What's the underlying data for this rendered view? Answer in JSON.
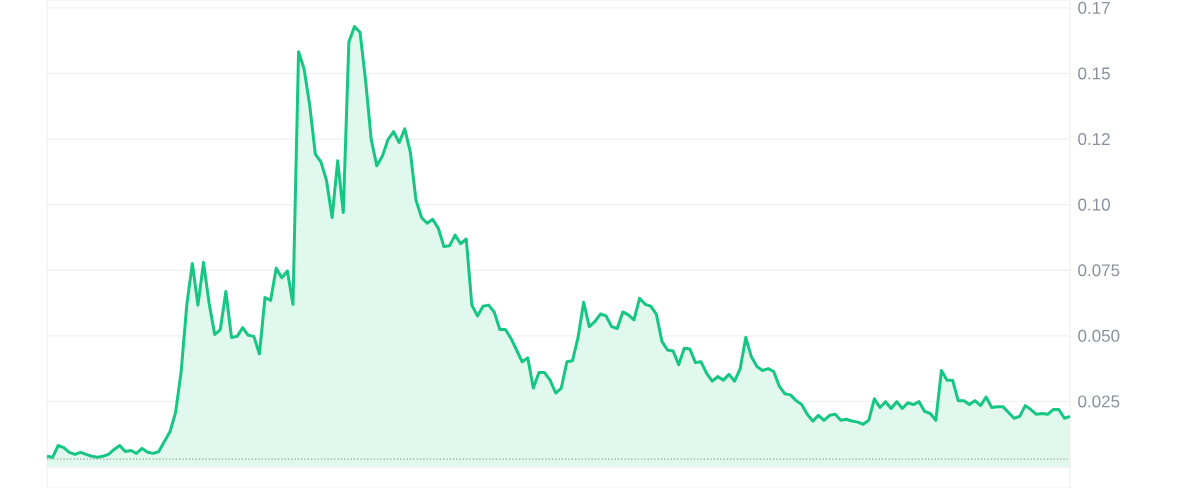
{
  "chart_data": {
    "type": "area",
    "categories": [
      null,
      null,
      null,
      null,
      null,
      null,
      null,
      null,
      null,
      null,
      null,
      null,
      null,
      null,
      null,
      null,
      null,
      null,
      null,
      null,
      null,
      null,
      null,
      null,
      null,
      null,
      null,
      null,
      null,
      null,
      null,
      null,
      null,
      null,
      null,
      null,
      null,
      null,
      null,
      null,
      null,
      null,
      null,
      null,
      null,
      null,
      null,
      null,
      null,
      null,
      null,
      null,
      null,
      null,
      null,
      null,
      null,
      null,
      null,
      null,
      null,
      null,
      null,
      null,
      null,
      null,
      null,
      null,
      null,
      null,
      null,
      null,
      null,
      null,
      null,
      null,
      null,
      null,
      null,
      null,
      null,
      null,
      null,
      null,
      null,
      null,
      null,
      null,
      null,
      null,
      null,
      null,
      null,
      null,
      null,
      null,
      null,
      null,
      null,
      null,
      null,
      null,
      null,
      null,
      null,
      null,
      null,
      null,
      null,
      null,
      null,
      null,
      null,
      null,
      null,
      null,
      null,
      null,
      null,
      null,
      null,
      null,
      null,
      null,
      null,
      null,
      null,
      null,
      null,
      null,
      null,
      null,
      null,
      null,
      null,
      null,
      null,
      null,
      null,
      null,
      null,
      null,
      null,
      null,
      null,
      null,
      null,
      null,
      null,
      null,
      null,
      null,
      null,
      null,
      null,
      null,
      null,
      null,
      null,
      null,
      null,
      null,
      null,
      null,
      null,
      null,
      null,
      null,
      null,
      null,
      null,
      null,
      null,
      null,
      null,
      null,
      null,
      null,
      null,
      null,
      null,
      null,
      null,
      null
    ],
    "series": [
      {
        "color": "#16c784",
        "values": [
          0.0041,
          0.0037,
          0.0082,
          0.0074,
          0.0056,
          0.0048,
          0.0056,
          0.0048,
          0.0041,
          0.0037,
          0.0041,
          0.0048,
          0.0067,
          0.0082,
          0.0059,
          0.0063,
          0.0052,
          0.0071,
          0.0056,
          0.0052,
          0.0059,
          0.0097,
          0.0134,
          0.0208,
          0.0364,
          0.0617,
          0.0776,
          0.0617,
          0.078,
          0.0624,
          0.0505,
          0.0524,
          0.0669,
          0.0494,
          0.0498,
          0.0531,
          0.0502,
          0.0498,
          0.0431,
          0.0646,
          0.0635,
          0.0758,
          0.0721,
          0.0747,
          0.062,
          0.1583,
          0.1516,
          0.1378,
          0.1193,
          0.1163,
          0.1092,
          0.0951,
          0.1167,
          0.097,
          0.162,
          0.1679,
          0.1657,
          0.1471,
          0.1248,
          0.1148,
          0.1185,
          0.1248,
          0.1278,
          0.1237,
          0.1289,
          0.12,
          0.1018,
          0.0951,
          0.0929,
          0.0944,
          0.091,
          0.084,
          0.0843,
          0.0884,
          0.0851,
          0.0869,
          0.0617,
          0.0576,
          0.0613,
          0.0617,
          0.0591,
          0.0524,
          0.0524,
          0.049,
          0.0446,
          0.0401,
          0.0416,
          0.0301,
          0.036,
          0.036,
          0.0331,
          0.0282,
          0.0301,
          0.0401,
          0.0405,
          0.0494,
          0.0628,
          0.0535,
          0.0554,
          0.0583,
          0.0576,
          0.0535,
          0.0528,
          0.0591,
          0.058,
          0.0561,
          0.0643,
          0.062,
          0.0613,
          0.0583,
          0.0479,
          0.0446,
          0.0442,
          0.039,
          0.0453,
          0.045,
          0.0398,
          0.0401,
          0.0357,
          0.0327,
          0.0345,
          0.0331,
          0.0353,
          0.0327,
          0.0375,
          0.0494,
          0.042,
          0.0383,
          0.0368,
          0.0375,
          0.0364,
          0.0308,
          0.0279,
          0.0275,
          0.0253,
          0.0238,
          0.0201,
          0.0175,
          0.0197,
          0.0178,
          0.0197,
          0.0201,
          0.0178,
          0.0182,
          0.0175,
          0.0171,
          0.0163,
          0.0178,
          0.026,
          0.0227,
          0.0249,
          0.0223,
          0.0249,
          0.0223,
          0.0245,
          0.0238,
          0.0249,
          0.0212,
          0.0204,
          0.0178,
          0.0368,
          0.0331,
          0.0331,
          0.0253,
          0.0253,
          0.0238,
          0.0253,
          0.0234,
          0.0267,
          0.0227,
          0.023,
          0.023,
          0.0208,
          0.0186,
          0.0193,
          0.0234,
          0.0219,
          0.0201,
          0.0204,
          0.0201,
          0.0219,
          0.0219,
          0.0186,
          0.0193
        ]
      }
    ],
    "ylim": [
      -0.008,
      0.178
    ],
    "yticks": [
      {
        "value": 0,
        "label": null
      },
      0.025,
      {
        "value": 0.05,
        "label": "0.050"
      },
      0.075,
      {
        "value": 0.1,
        "label": "0.10"
      },
      {
        "value": 0.125,
        "label": "0.12"
      },
      {
        "value": 0.15,
        "label": "0.15"
      },
      {
        "value": 0.175,
        "label": "0.17"
      }
    ],
    "tick_labels": "y",
    "grid": "y",
    "ref_lines": [
      {
        "axis": "y",
        "value": 0.003,
        "color": "#9aa0a6",
        "line_style": "dotted"
      }
    ]
  }
}
